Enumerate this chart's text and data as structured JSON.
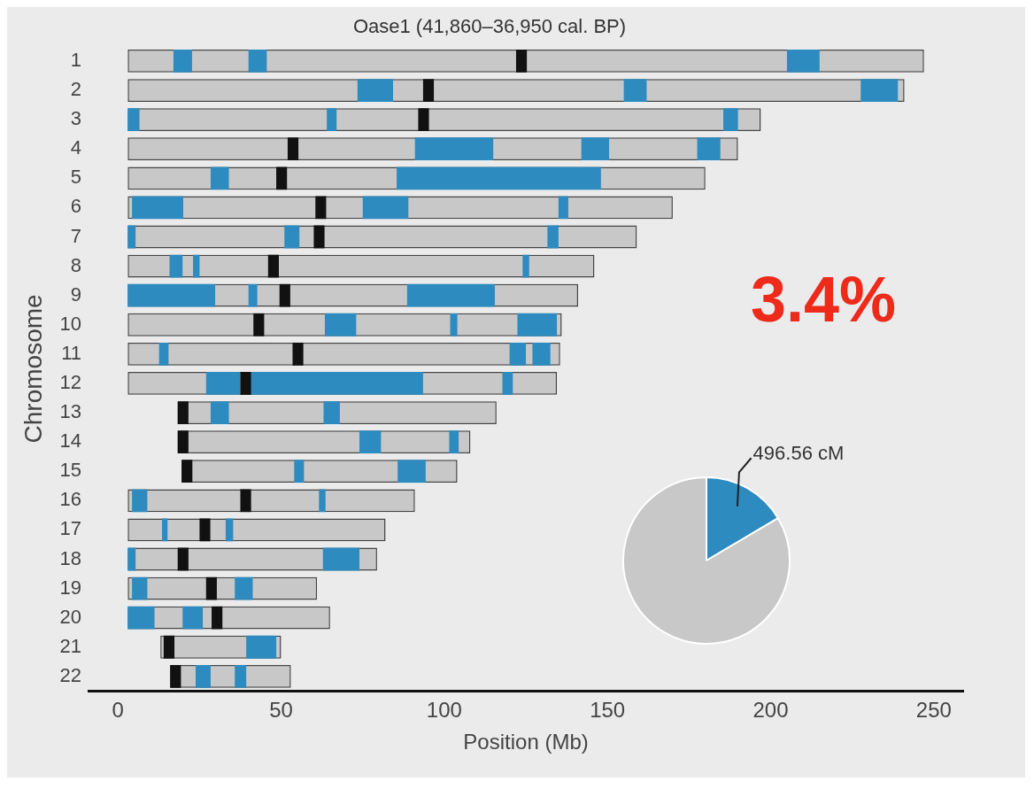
{
  "chart_data": [
    {
      "type": "bar",
      "orientation": "horizontal",
      "title": "Oase1 (41,860–36,950 cal. BP)",
      "xlabel": "Position (Mb)",
      "ylabel": "Chromosome",
      "categories": [
        "1",
        "2",
        "3",
        "4",
        "5",
        "6",
        "7",
        "8",
        "9",
        "10",
        "11",
        "12",
        "13",
        "14",
        "15",
        "16",
        "17",
        "18",
        "19",
        "20",
        "21",
        "22"
      ],
      "xlim": [
        -9,
        259
      ],
      "xticks": [
        0,
        50,
        100,
        150,
        200,
        250
      ],
      "grid": false,
      "annotations": [
        "3.4%"
      ],
      "series": [
        {
          "color": "#c8c8c8",
          "base": [
            3,
            3,
            3,
            3,
            3,
            3,
            3,
            3,
            3,
            3,
            3,
            3,
            18.3,
            18.3,
            19.5,
            3,
            3,
            3,
            3,
            3,
            13,
            16
          ],
          "values": [
            244,
            238,
            194,
            187,
            177,
            167,
            156,
            143,
            138,
            133,
            132.5,
            131.5,
            97.7,
            89.7,
            84.5,
            88,
            79,
            76.4,
            58,
            62,
            37,
            37
          ]
        },
        {
          "color": "#2e8bc0",
          "base": [
            17,
            73.4,
            3,
            91,
            85.4,
            4.3,
            3,
            15.8,
            3,
            63.4,
            120,
            27,
            63,
            74,
            85.7,
            4.3,
            33,
            3,
            4.3,
            3,
            39.3,
            23.8
          ],
          "values": [
            5.7,
            10.9,
            3.6,
            24,
            62.6,
            15.7,
            2.4,
            4,
            26.8,
            9.6,
            5,
            10.5,
            5,
            6.6,
            8.6,
            4.7,
            2.3,
            2.4,
            4.7,
            8.2,
            9.2,
            4.6
          ]
        },
        {
          "color": "#2e8bc0",
          "base": [
            205,
            155,
            64,
            142,
            28.4,
            75,
            51,
            23,
            88.6,
            101.8,
            127,
            40.7,
            28.4,
            101.5,
            54,
            61.6,
            13.5,
            62.8,
            35.8,
            19.8,
            null,
            35.8
          ],
          "values": [
            10,
            7,
            3,
            8.5,
            5.6,
            14,
            4.6,
            2,
            26.9,
            2.2,
            5.5,
            52.8,
            5.6,
            2.9,
            3,
            2,
            1.7,
            11.2,
            5.5,
            6.2,
            null,
            3.5
          ]
        },
        {
          "color": "#2e8bc0",
          "base": [
            40,
            227.6,
            185.5,
            177.5,
            null,
            135,
            131.6,
            124,
            40,
            122.4,
            12.6,
            117.8,
            null,
            null,
            null,
            null,
            null,
            null,
            null,
            null,
            null,
            null
          ],
          "values": [
            5.6,
            11.4,
            4.5,
            7.1,
            null,
            3,
            3.4,
            2,
            2.7,
            12.1,
            2.9,
            3.2,
            null,
            null,
            null,
            null,
            null,
            null,
            null,
            null,
            null,
            null
          ]
        },
        {
          "color": "#111111",
          "base": [
            122,
            93.5,
            92,
            52,
            48.5,
            60.5,
            60,
            46,
            49.5,
            41.5,
            53.5,
            37.5,
            18.3,
            18.3,
            19.5,
            37.5,
            25,
            18.3,
            27,
            28.7,
            14,
            16
          ],
          "values": [
            3.3,
            3.3,
            3.3,
            3.3,
            3.3,
            3.3,
            3.3,
            3.3,
            3.3,
            3.3,
            3.3,
            3.3,
            3.3,
            3.3,
            3.3,
            3.3,
            3.3,
            3.3,
            3.3,
            3.3,
            3.3,
            3.3
          ]
        }
      ]
    },
    {
      "type": "pie",
      "categories": [
        null,
        null
      ],
      "values": [
        16.5,
        83.5
      ],
      "colors": [
        "#2e8bc0",
        "#c8c8c8"
      ],
      "annotations": [
        "496.56 cM"
      ]
    }
  ]
}
